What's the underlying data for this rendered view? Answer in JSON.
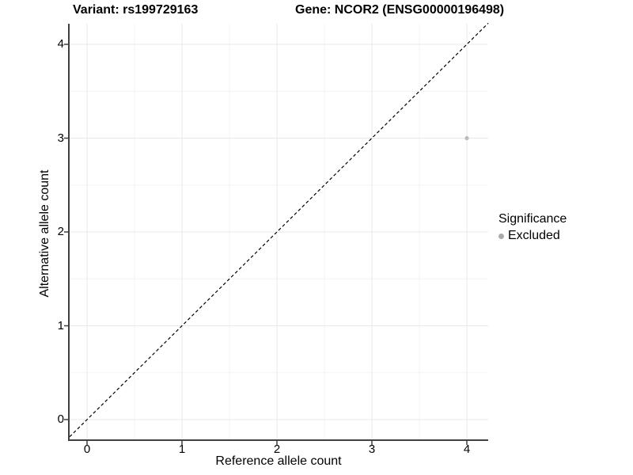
{
  "titles": {
    "variant": "Variant: rs199729163",
    "gene": "Gene: NCOR2 (ENSG00000196498)"
  },
  "chart_data": {
    "type": "scatter",
    "xlabel": "Reference allele count",
    "ylabel": "Alternative allele count",
    "xlim": [
      -0.18,
      4.22
    ],
    "ylim": [
      -0.21,
      4.22
    ],
    "xticks": [
      0,
      1,
      2,
      3,
      4
    ],
    "yticks": [
      0,
      1,
      2,
      3,
      4
    ],
    "grid": "major at integers and minor at half-steps, light gray on white",
    "points": [
      {
        "x": 4,
        "y": 3,
        "series": "Excluded",
        "color": "#bdbdbd",
        "radius": 2.6
      }
    ],
    "reference_line": {
      "type": "identity",
      "slope": 1,
      "intercept": 0,
      "style": "dashed",
      "color": "#000000"
    },
    "legend": {
      "title": "Significance",
      "position": "right",
      "entries": [
        {
          "label": "Excluded",
          "color": "#aaaaaa"
        }
      ]
    }
  },
  "colors": {
    "background": "#ffffff",
    "axis_line": "#404040",
    "grid_major": "#e8e8e8",
    "grid_minor": "#f3f3f3",
    "text": "#000000"
  }
}
